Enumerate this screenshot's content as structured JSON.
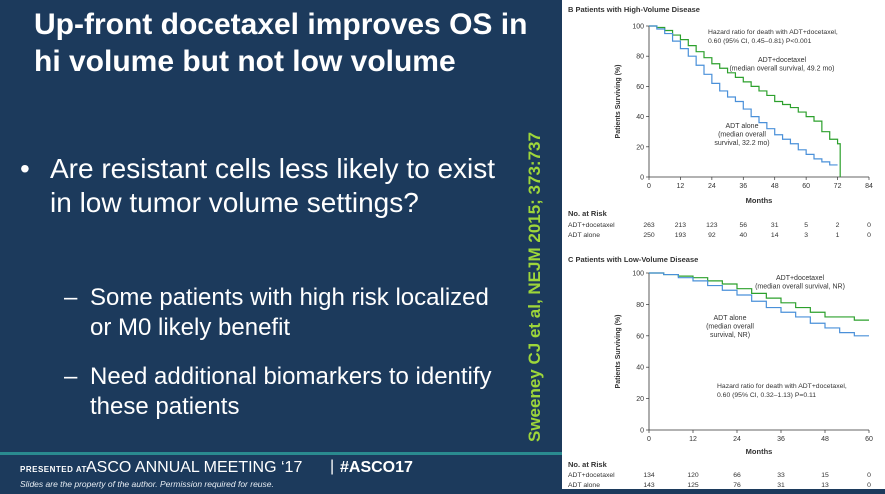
{
  "slide": {
    "title": "Up-front docetaxel improves OS in hi volume but not low volume",
    "bullet": "Are resistant cells less likely to exist in low tumor volume settings?",
    "subbullets": [
      "Some patients with high risk localized or M0 likely benefit",
      "Need additional biomarkers to identify these patients"
    ],
    "bullet_marker": "•",
    "sub_marker": "–",
    "citation": "Sweeney CJ et al, NEJM 2015; 373:737"
  },
  "footer": {
    "presented_at": "PRESENTED AT:",
    "meeting": "ASCO ANNUAL MEETING ‘17",
    "separator": "|",
    "hashtag": "#ASCO17",
    "note": "Slides are the property of the author. Permission required for reuse."
  },
  "colors": {
    "background": "#1c3a5c",
    "docetaxel_line": "#2ca02c",
    "adt_line": "#4a90d9",
    "citation": "#9ed63a"
  },
  "chart_data": [
    {
      "type": "line",
      "panel_title": "B  Patients with High-Volume Disease",
      "ylabel": "Patients Surviving (%)",
      "xlabel": "Months",
      "xlim": [
        0,
        84
      ],
      "ylim": [
        0,
        100
      ],
      "xticks": [
        0,
        12,
        24,
        36,
        48,
        60,
        72,
        84
      ],
      "yticks": [
        0,
        20,
        40,
        60,
        80,
        100
      ],
      "hazard_text": [
        "Hazard ratio for death with ADT+docetaxel,",
        "0.60 (95% CI, 0.45–0.81) P<0.001"
      ],
      "series": [
        {
          "name": "ADT+docetaxel",
          "label_lines": [
            "ADT+docetaxel",
            "(median overall survival, 49.2 mo)"
          ],
          "color": "#2ca02c",
          "x": [
            0,
            3,
            6,
            9,
            12,
            15,
            18,
            21,
            24,
            27,
            30,
            33,
            36,
            39,
            42,
            45,
            48,
            51,
            54,
            57,
            60,
            63,
            66,
            69,
            72,
            73
          ],
          "y": [
            100,
            99,
            97,
            94,
            91,
            87,
            83,
            79,
            75,
            72,
            69,
            66,
            63,
            60,
            57,
            54,
            50,
            48,
            46,
            43,
            40,
            37,
            30,
            25,
            22,
            0
          ]
        },
        {
          "name": "ADT alone",
          "label_lines": [
            "ADT alone",
            "(median overall",
            "survival, 32.2 mo)"
          ],
          "color": "#4a90d9",
          "x": [
            0,
            3,
            6,
            9,
            12,
            15,
            18,
            21,
            24,
            27,
            30,
            33,
            36,
            39,
            42,
            45,
            48,
            51,
            54,
            57,
            60,
            63,
            66,
            69,
            72
          ],
          "y": [
            100,
            98,
            95,
            90,
            85,
            80,
            74,
            68,
            62,
            57,
            53,
            50,
            45,
            40,
            36,
            32,
            28,
            25,
            22,
            18,
            15,
            12,
            10,
            8,
            8
          ]
        }
      ],
      "risk_table": {
        "heading": "No. at Risk",
        "rows": [
          {
            "label": "ADT+docetaxel",
            "values": [
              "263",
              "213",
              "123",
              "56",
              "31",
              "5",
              "2",
              "0"
            ]
          },
          {
            "label": "ADT alone",
            "values": [
              "250",
              "193",
              "92",
              "40",
              "14",
              "3",
              "1",
              "0"
            ]
          }
        ]
      }
    },
    {
      "type": "line",
      "panel_title": "C  Patients with Low-Volume Disease",
      "ylabel": "Patients Surviving (%)",
      "xlabel": "Months",
      "xlim": [
        0,
        60
      ],
      "ylim": [
        0,
        100
      ],
      "xticks": [
        0,
        12,
        24,
        36,
        48,
        60
      ],
      "yticks": [
        0,
        20,
        40,
        60,
        80,
        100
      ],
      "hazard_text": [
        "Hazard ratio for death with ADT+docetaxel,",
        "0.60 (95% CI, 0.32–1.13) P=0.11"
      ],
      "series": [
        {
          "name": "ADT+docetaxel",
          "label_lines": [
            "ADT+docetaxel",
            "(median overall survival, NR)"
          ],
          "color": "#2ca02c",
          "x": [
            0,
            4,
            8,
            12,
            16,
            20,
            24,
            28,
            32,
            36,
            40,
            44,
            48,
            52,
            56,
            60
          ],
          "y": [
            100,
            99,
            98,
            97,
            95,
            93,
            90,
            87,
            84,
            81,
            78,
            75,
            72,
            72,
            70,
            70
          ]
        },
        {
          "name": "ADT alone",
          "label_lines": [
            "ADT alone",
            "(median overall",
            "survival, NR)"
          ],
          "color": "#4a90d9",
          "x": [
            0,
            4,
            8,
            12,
            16,
            20,
            24,
            28,
            32,
            36,
            40,
            44,
            48,
            52,
            56,
            60
          ],
          "y": [
            100,
            99,
            97,
            95,
            92,
            89,
            86,
            82,
            78,
            75,
            72,
            68,
            65,
            62,
            60,
            60
          ]
        }
      ],
      "risk_table": {
        "heading": "No. at Risk",
        "rows": [
          {
            "label": "ADT+docetaxel",
            "values": [
              "134",
              "120",
              "66",
              "33",
              "15",
              "0"
            ]
          },
          {
            "label": "ADT alone",
            "values": [
              "143",
              "125",
              "76",
              "31",
              "13",
              "0"
            ]
          }
        ]
      }
    }
  ]
}
